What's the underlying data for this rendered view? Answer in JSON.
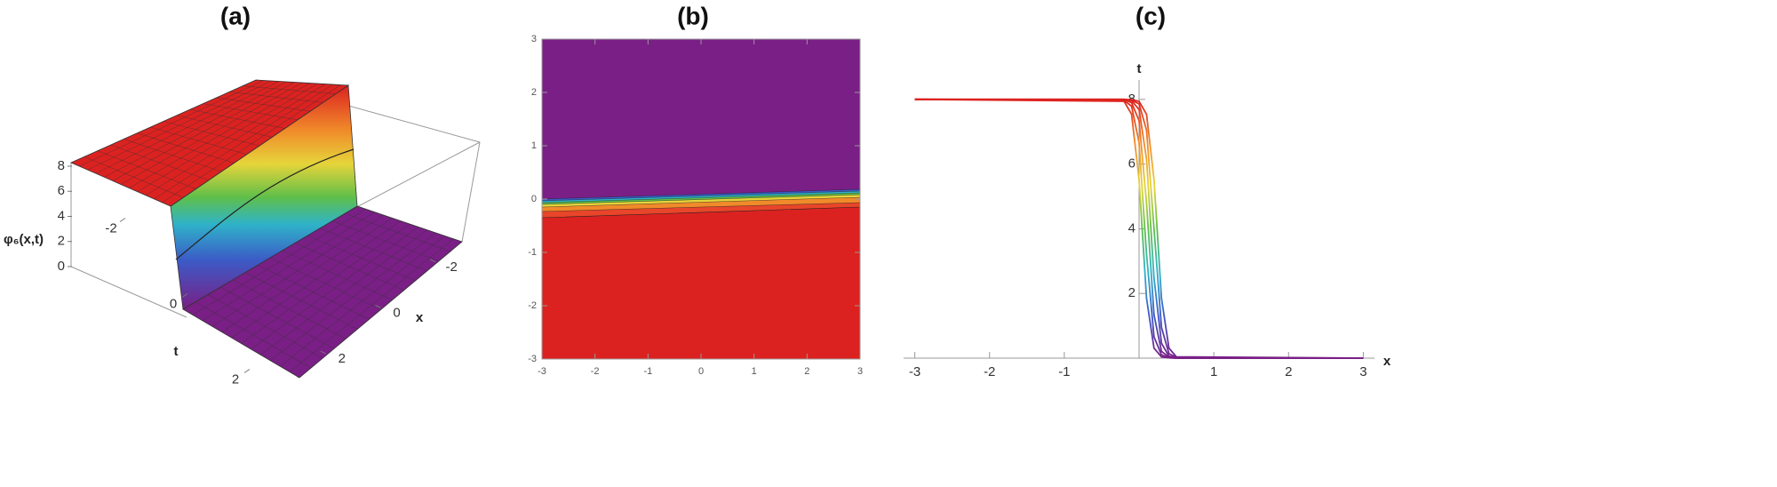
{
  "chart_data": [
    {
      "type": "surface3d",
      "title": "(a)",
      "z_label": "φ₆(x,t)",
      "x_label": "x",
      "y_label": "t",
      "xlim": [
        -3,
        3
      ],
      "xticks": [
        -2,
        0,
        2
      ],
      "ylim": [
        -3,
        3
      ],
      "yticks": [
        -2,
        0,
        2
      ],
      "zlim": [
        0,
        8
      ],
      "zticks": [
        0,
        2,
        4,
        6,
        8
      ]
    },
    {
      "type": "contour",
      "title": "(b)",
      "xlim": [
        -3,
        3
      ],
      "xticks": [
        -3,
        -2,
        -1,
        0,
        1,
        2,
        3
      ],
      "ylim": [
        -3,
        3
      ],
      "yticks": [
        -3,
        -2,
        -1,
        0,
        1,
        2,
        3
      ]
    },
    {
      "type": "line",
      "title": "(c)",
      "x_label": "x",
      "y_label": "t",
      "xlim": [
        -3.15,
        3.15
      ],
      "xticks": [
        -3,
        -2,
        -1,
        1,
        2,
        3
      ],
      "ylim": [
        0,
        8.6
      ],
      "yticks": [
        2,
        4,
        6,
        8
      ],
      "color_scale": [
        "#7a1f86",
        "#3b5bc7",
        "#2fb3c8",
        "#5fbf4a",
        "#e6d43a",
        "#f08a2a",
        "#dc2220"
      ],
      "x": [
        -3,
        -0.2,
        -0.1,
        0,
        0.1,
        0.2,
        0.3,
        0.4,
        0.5,
        3
      ],
      "series": [
        {
          "values": [
            8,
            7.94,
            7.54,
            5.52,
            1.85,
            0.31,
            0.04,
            0.01,
            0,
            0
          ]
        },
        {
          "values": [
            8,
            7.97,
            7.79,
            6.66,
            3.21,
            0.66,
            0.1,
            0.01,
            0,
            0
          ]
        },
        {
          "values": [
            8,
            7.99,
            7.9,
            7.34,
            4.79,
            1.34,
            0.21,
            0.03,
            0,
            0
          ]
        },
        {
          "values": [
            8,
            7.99,
            7.96,
            7.69,
            6.15,
            2.48,
            0.46,
            0.06,
            0.01,
            0
          ]
        },
        {
          "values": [
            8,
            8,
            7.98,
            7.86,
            7.05,
            4,
            0.95,
            0.14,
            0.02,
            0
          ]
        },
        {
          "values": [
            8,
            8,
            7.99,
            7.94,
            7.54,
            5.52,
            1.85,
            0.31,
            0.04,
            0
          ]
        }
      ]
    }
  ]
}
